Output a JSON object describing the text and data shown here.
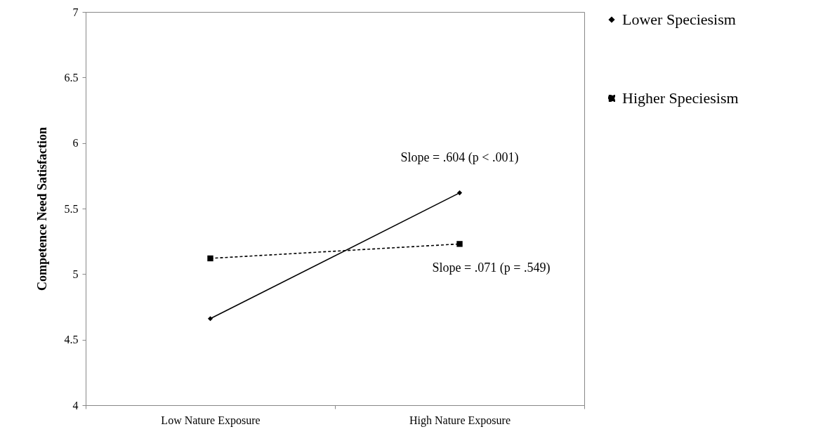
{
  "chart_data": {
    "type": "line",
    "ylabel": "Competence Need Satisfaction",
    "categories": [
      "Low Nature Exposure",
      "High Nature Exposure"
    ],
    "series": [
      {
        "name": "Lower Speciesism",
        "color": "#000000",
        "values": [
          4.66,
          5.62
        ],
        "marker": "diamond",
        "line_style": "solid"
      },
      {
        "name": "Higher Speciesism",
        "color": "#000000",
        "values": [
          5.12,
          5.23
        ],
        "marker": "square",
        "line_style": "dashed"
      }
    ],
    "ylim": [
      4,
      7
    ],
    "yticks": [
      4,
      4.5,
      5,
      5.5,
      6,
      6.5,
      7
    ],
    "grid": false,
    "legend": "right",
    "annotations": [
      "Slope = .604 (p < .001)",
      "Slope = .071 (p = .549)"
    ]
  }
}
